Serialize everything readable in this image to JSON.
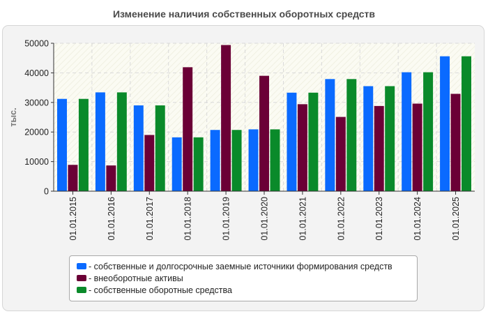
{
  "chart_data": {
    "type": "bar",
    "title": "Изменение наличия собственных оборотных средств",
    "xlabel": "",
    "ylabel": "тыс.",
    "ylim": [
      0,
      50000
    ],
    "yticks": [
      0,
      10000,
      20000,
      30000,
      40000,
      50000
    ],
    "grid": true,
    "legend_position": "bottom",
    "categories": [
      "01.01.2015",
      "01.01.2016",
      "01.01.2017",
      "01.01.2018",
      "01.01.2019",
      "01.01.2020",
      "01.01.2021",
      "01.01.2022",
      "01.01.2023",
      "01.01.2024",
      "01.01.2025"
    ],
    "series": [
      {
        "name": "- собственные и долгосрочные заемные источники формирования средств",
        "color": "#0a6aff",
        "values": [
          31200,
          33400,
          29000,
          18200,
          20700,
          20900,
          33300,
          37900,
          35500,
          40200,
          45600
        ]
      },
      {
        "name": "- внеоборотные активы",
        "color": "#6b0036",
        "values": [
          8900,
          8700,
          19000,
          41900,
          49400,
          39000,
          29400,
          25100,
          28800,
          29600,
          32900
        ]
      },
      {
        "name": "- собственные оборотные средства",
        "color": "#0a8a2a",
        "values": [
          31200,
          33400,
          29000,
          18200,
          20700,
          20900,
          33300,
          37900,
          35500,
          40200,
          45600
        ]
      }
    ]
  }
}
